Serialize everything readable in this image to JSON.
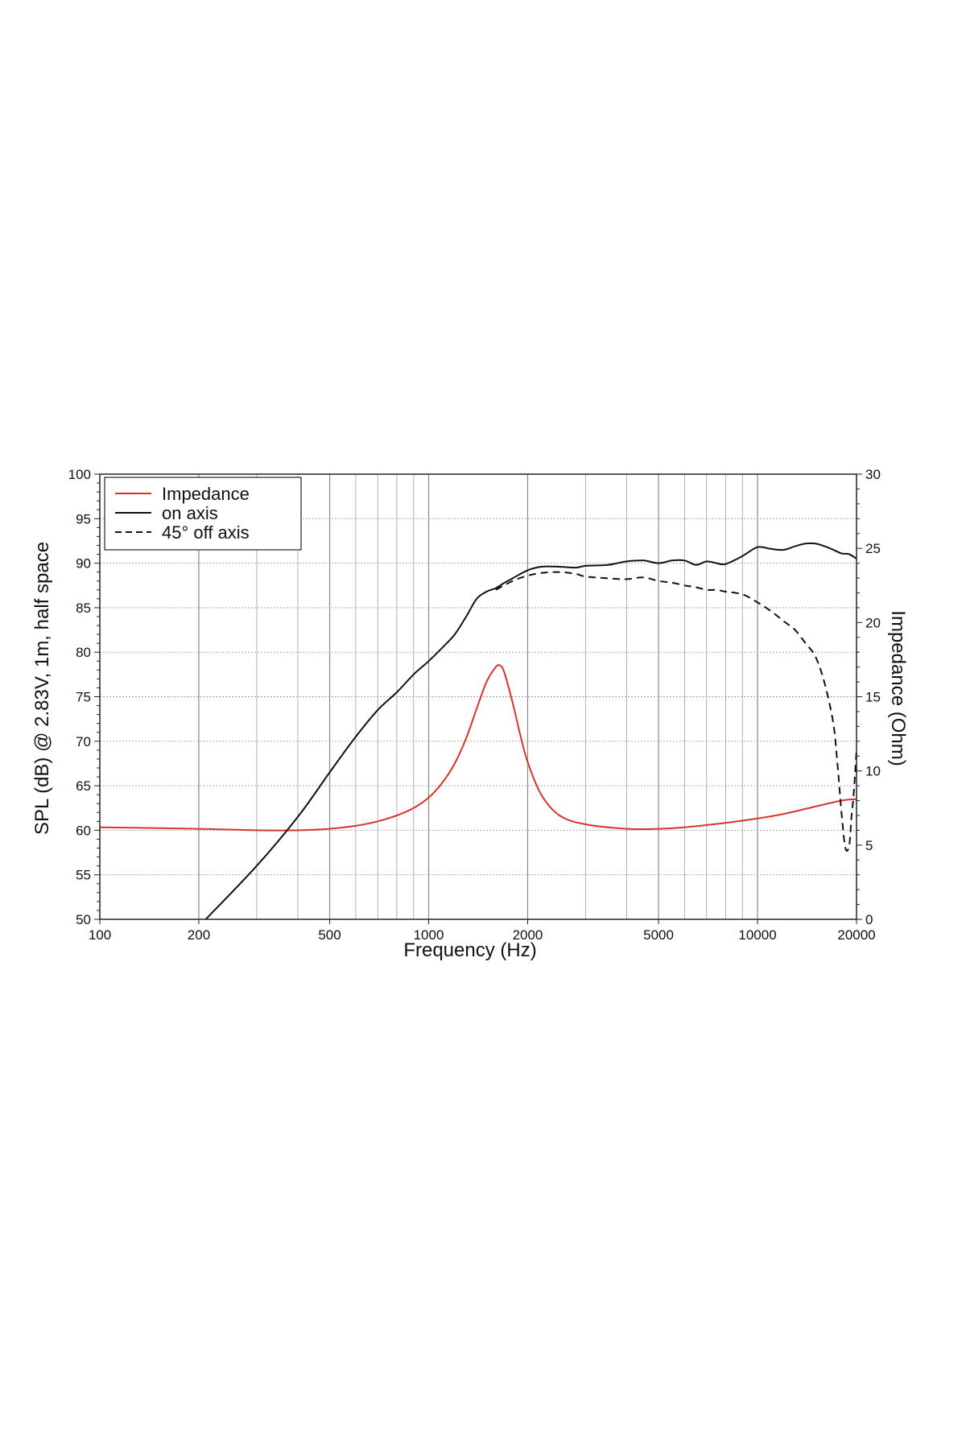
{
  "chart_data": {
    "type": "line",
    "title": "",
    "xlabel": "Frequency (Hz)",
    "ylabel_left": "SPL (dB) @ 2.83V, 1m, half space",
    "ylabel_right": "Impedance (Ohm)",
    "x_scale": "log",
    "xlim": [
      100,
      20000
    ],
    "ylim_left": [
      50,
      100
    ],
    "ylim_right": [
      0,
      30
    ],
    "x_ticks": [
      100,
      200,
      500,
      1000,
      2000,
      5000,
      10000,
      20000
    ],
    "x_tick_labels": [
      "100",
      "200",
      "500",
      "1000",
      "2000",
      "5000",
      "10000",
      "20000"
    ],
    "y_left_ticks": [
      50,
      55,
      60,
      65,
      70,
      75,
      80,
      85,
      90,
      95,
      100
    ],
    "y_left_tick_labels": [
      "50",
      "55",
      "60",
      "65",
      "70",
      "75",
      "80",
      "85",
      "90",
      "95",
      "100"
    ],
    "y_right_ticks": [
      0,
      5,
      10,
      15,
      20,
      25,
      30
    ],
    "y_right_tick_labels": [
      "0",
      "5",
      "10",
      "15",
      "20",
      "25",
      "30"
    ],
    "grid": true,
    "legend_position": "top-left",
    "series": [
      {
        "name": "Impedance",
        "axis": "right",
        "color": "#d9342b",
        "style": "solid",
        "x": [
          100,
          200,
          300,
          400,
          500,
          600,
          700,
          800,
          900,
          1000,
          1100,
          1200,
          1300,
          1400,
          1500,
          1600,
          1650,
          1700,
          1800,
          1900,
          2000,
          2200,
          2500,
          3000,
          4000,
          5000,
          6000,
          8000,
          10000,
          12000,
          15000,
          18000,
          20000
        ],
        "values": [
          6.2,
          6.1,
          6.0,
          6.0,
          6.1,
          6.3,
          6.6,
          7.0,
          7.5,
          8.2,
          9.2,
          10.5,
          12.2,
          14.2,
          16.0,
          17.0,
          17.1,
          16.6,
          14.6,
          12.4,
          10.6,
          8.4,
          7.0,
          6.4,
          6.1,
          6.1,
          6.2,
          6.5,
          6.8,
          7.1,
          7.6,
          8.0,
          8.1
        ]
      },
      {
        "name": "on axis",
        "axis": "left",
        "color": "#111111",
        "style": "solid",
        "x": [
          210,
          300,
          400,
          500,
          600,
          700,
          800,
          900,
          1000,
          1100,
          1200,
          1300,
          1400,
          1500,
          1600,
          1700,
          1800,
          2000,
          2200,
          2500,
          2800,
          3000,
          3500,
          4000,
          4500,
          5000,
          5500,
          6000,
          6500,
          7000,
          7500,
          8000,
          9000,
          10000,
          11000,
          12000,
          13000,
          14000,
          15000,
          16000,
          17000,
          18000,
          19000,
          20000
        ],
        "values": [
          50,
          56,
          61.5,
          66.5,
          70.5,
          73.5,
          75.5,
          77.5,
          79,
          80.5,
          82,
          84,
          86,
          86.8,
          87.2,
          87.8,
          88.3,
          89.2,
          89.6,
          89.6,
          89.5,
          89.7,
          89.8,
          90.2,
          90.3,
          90.0,
          90.3,
          90.3,
          89.8,
          90.2,
          90.0,
          89.9,
          90.8,
          91.8,
          91.6,
          91.5,
          91.9,
          92.2,
          92.2,
          91.9,
          91.5,
          91.1,
          91.0,
          90.5
        ]
      },
      {
        "name": "45° off axis",
        "axis": "left",
        "color": "#111111",
        "style": "dashed",
        "x": [
          1600,
          1800,
          2000,
          2200,
          2500,
          2800,
          3000,
          3500,
          4000,
          4500,
          5000,
          5500,
          6000,
          6500,
          7000,
          7500,
          8000,
          9000,
          10000,
          11000,
          12000,
          13000,
          14000,
          15000,
          16000,
          17000,
          17500,
          18000,
          18500,
          19000,
          19300,
          19600,
          20000
        ],
        "values": [
          87.0,
          88.0,
          88.6,
          88.9,
          89.0,
          88.8,
          88.5,
          88.3,
          88.2,
          88.4,
          88.0,
          87.8,
          87.5,
          87.3,
          87.0,
          87.0,
          86.8,
          86.5,
          85.6,
          84.6,
          83.5,
          82.5,
          81.0,
          79.5,
          76.5,
          72.0,
          67.5,
          62.0,
          58.0,
          58.3,
          61.5,
          64.0,
          69.0
        ]
      }
    ]
  }
}
